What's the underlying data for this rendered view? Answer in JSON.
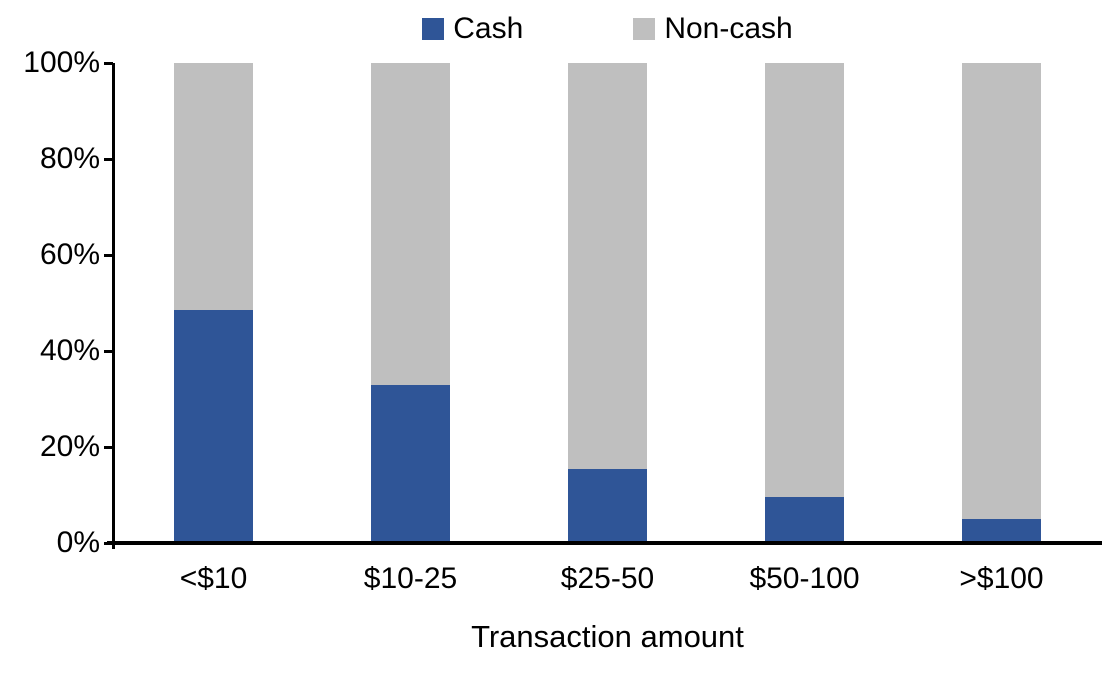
{
  "chart_data": {
    "type": "bar",
    "stacked": true,
    "percent_stacked": true,
    "title": "",
    "xlabel": "Transaction amount",
    "ylabel": "",
    "categories": [
      "<$10",
      "$10-25",
      "$25-50",
      "$50-100",
      ">$100"
    ],
    "series": [
      {
        "name": "Cash",
        "color": "#2F5597",
        "values": [
          48.5,
          33.0,
          15.5,
          9.5,
          5.0
        ]
      },
      {
        "name": "Non-cash",
        "color": "#BFBFBF",
        "values": [
          51.5,
          67.0,
          84.5,
          90.5,
          95.0
        ]
      }
    ],
    "ylim": [
      0,
      100
    ],
    "yticks": [
      {
        "value": 0,
        "label": "0%"
      },
      {
        "value": 20,
        "label": "20%"
      },
      {
        "value": 40,
        "label": "40%"
      },
      {
        "value": 60,
        "label": "60%"
      },
      {
        "value": 80,
        "label": "80%"
      },
      {
        "value": 100,
        "label": "100%"
      }
    ],
    "grid": false,
    "legend_position": "top",
    "axis_color": "#000000",
    "text_color": "#000000",
    "background_color": "#FFFFFF",
    "bar_width_fraction": 0.4
  }
}
